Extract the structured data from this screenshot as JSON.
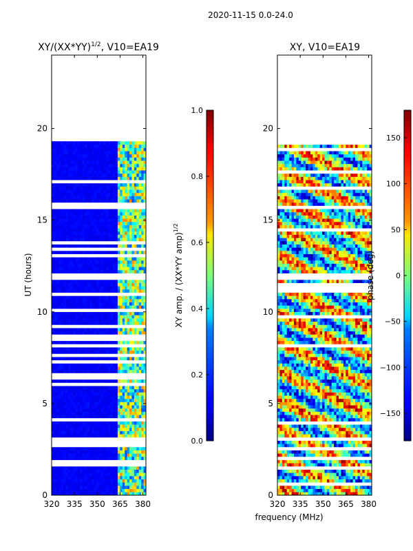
{
  "figure_title": "2020-11-15 0.0-24.0",
  "xlabel_shared": "frequency (MHz)",
  "chart_data": [
    {
      "type": "heatmap",
      "title": "XY/(XX*YY)",
      "title_sup": "1/2",
      "title_suffix": ", V10=EA19",
      "xlabel": "",
      "ylabel": "UT (hours)",
      "xlim": [
        320,
        382
      ],
      "ylim": [
        0,
        24
      ],
      "xticks": [
        320,
        335,
        350,
        365,
        380
      ],
      "yticks": [
        0,
        5,
        10,
        15,
        20
      ],
      "data_extent_hours": [
        0,
        19.3
      ],
      "active_band_mhz": [
        362,
        382
      ],
      "quantity": "normalized XY amplitude",
      "colormap": "jet",
      "colorbar": {
        "label": "XY amp. / (XX*YY amp)",
        "label_sup": "1/2",
        "range": [
          0.0,
          1.0
        ],
        "ticks": [
          "0.0",
          "0.2",
          "0.4",
          "0.6",
          "0.8",
          "1.0"
        ]
      }
    },
    {
      "type": "heatmap",
      "title": "XY, V10=EA19",
      "xlabel": "frequency (MHz)",
      "ylabel": "",
      "xlim": [
        320,
        382
      ],
      "ylim": [
        0,
        24
      ],
      "xticks": [
        320,
        335,
        350,
        365,
        380
      ],
      "yticks": [
        0,
        5,
        10,
        15,
        20
      ],
      "data_extent_hours": [
        0,
        19.3
      ],
      "quantity": "XY phase",
      "colormap": "jet",
      "colorbar": {
        "label": "phase (deg)",
        "range": [
          -180,
          180
        ],
        "ticks": [
          "-150",
          "-100",
          "-50",
          "0",
          "50",
          "100",
          "150"
        ]
      }
    }
  ]
}
